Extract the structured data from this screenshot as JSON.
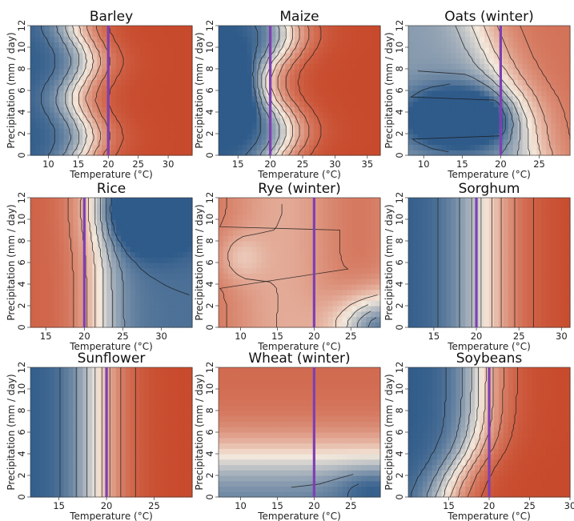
{
  "figure": {
    "colors": {
      "low": "#2f5b8a",
      "mid": "#f4e9dc",
      "high": "#c84a2c",
      "threshold_line": "#7e3fb3",
      "contour": "#1a1a1a"
    }
  },
  "chart_data": [
    {
      "type": "heatmap",
      "title": "Barley",
      "xlabel": "Temperature (°C)",
      "ylabel": "Precipitation (mm / day)",
      "xlim": [
        7,
        34
      ],
      "ylim": [
        0,
        12
      ],
      "xticks": [
        10,
        15,
        20,
        25,
        30
      ],
      "yticks": [
        0,
        2,
        4,
        6,
        8,
        10,
        12
      ],
      "reference_line_x": 20,
      "center_temperature": 15.5,
      "low_value_region": "cool temperatures, all precipitation",
      "high_value_region": "warm temperatures above 20 °C"
    },
    {
      "type": "heatmap",
      "title": "Maize",
      "xlabel": "Temperature (°C)",
      "ylabel": "Precipitation (mm / day)",
      "xlim": [
        12,
        37
      ],
      "ylim": [
        0,
        12
      ],
      "xticks": [
        15,
        20,
        25,
        30,
        35
      ],
      "yticks": [
        0,
        2,
        4,
        6,
        8,
        10,
        12
      ],
      "reference_line_x": 20,
      "center_temperature": 21,
      "low_value_region": "cool and wet (≈14–18 °C, 4–10 mm/day)",
      "high_value_region": "warm temperatures above 25 °C"
    },
    {
      "type": "heatmap",
      "title": "Oats (winter)",
      "xlabel": "Temperature (°C)",
      "ylabel": "Precipitation (mm / day)",
      "xlim": [
        8,
        29
      ],
      "ylim": [
        0,
        12
      ],
      "xticks": [
        10,
        15,
        20,
        25
      ],
      "yticks": [
        0,
        2,
        4,
        6,
        8,
        10,
        12
      ],
      "reference_line_x": 20,
      "center_temperature": 19,
      "low_value_region": "moderate precipitation (2–6 mm/day), 10–22 °C",
      "high_value_region": "warm and wet corner"
    },
    {
      "type": "heatmap",
      "title": "Rice",
      "xlabel": "Temperature (°C)",
      "ylabel": "Precipitation (mm / day)",
      "xlim": [
        13,
        34
      ],
      "ylim": [
        0,
        12
      ],
      "xticks": [
        15,
        20,
        25,
        30
      ],
      "yticks": [
        0,
        2,
        4,
        6,
        8,
        10,
        12
      ],
      "reference_line_x": 20,
      "center_temperature": 22,
      "low_value_region": "warm and wet (≈25–30 °C, 8–12 mm/day)",
      "high_value_region": "cool temperatures below 18 °C"
    },
    {
      "type": "heatmap",
      "title": "Rye (winter)",
      "xlabel": "Temperature (°C)",
      "ylabel": "Precipitation (mm / day)",
      "xlim": [
        7,
        29
      ],
      "ylim": [
        0,
        12
      ],
      "xticks": [
        10,
        15,
        20,
        25
      ],
      "yticks": [
        0,
        2,
        4,
        6,
        8,
        10,
        12
      ],
      "reference_line_x": 20,
      "center_temperature": 18,
      "low_value_region": "warm and dry (>22 °C, 0–2 mm/day)",
      "high_value_region": "most of the range"
    },
    {
      "type": "heatmap",
      "title": "Sorghum",
      "xlabel": "Temperature (°C)",
      "ylabel": "Precipitation (mm / day)",
      "xlim": [
        12,
        31
      ],
      "ylim": [
        0,
        12
      ],
      "xticks": [
        15,
        20,
        25,
        30
      ],
      "yticks": [
        0,
        2,
        4,
        6,
        8,
        10,
        12
      ],
      "reference_line_x": 20,
      "center_temperature": 21,
      "low_value_region": "cool temperatures below 18 °C",
      "high_value_region": "warm temperatures above 24 °C"
    },
    {
      "type": "heatmap",
      "title": "Sunflower",
      "xlabel": "Temperature (°C)",
      "ylabel": "Precipitation (mm / day)",
      "xlim": [
        12,
        29
      ],
      "ylim": [
        0,
        12
      ],
      "xticks": [
        15,
        20,
        25
      ],
      "yticks": [
        0,
        2,
        4,
        6,
        8,
        10,
        12
      ],
      "reference_line_x": 20,
      "center_temperature": 19,
      "low_value_region": "cool temperatures below 17 °C",
      "high_value_region": "warm temperatures above 21 °C"
    },
    {
      "type": "heatmap",
      "title": "Wheat (winter)",
      "xlabel": "Temperature (°C)",
      "ylabel": "Precipitation (mm / day)",
      "xlim": [
        7,
        29
      ],
      "ylim": [
        0,
        12
      ],
      "xticks": [
        10,
        15,
        20,
        25
      ],
      "yticks": [
        0,
        2,
        4,
        6,
        8,
        10,
        12
      ],
      "reference_line_x": 20,
      "center_temperature": 18,
      "low_value_region": "dry conditions, especially warm and dry",
      "high_value_region": "wet conditions (>6 mm/day)"
    },
    {
      "type": "heatmap",
      "title": "Soybeans",
      "xlabel": "Temperature (°C)",
      "ylabel": "Precipitation (mm / day)",
      "xlim": [
        10,
        30
      ],
      "ylim": [
        0,
        12
      ],
      "xticks": [
        15,
        20,
        25,
        30
      ],
      "yticks": [
        0,
        2,
        4,
        6,
        8,
        10,
        12
      ],
      "reference_line_x": 20,
      "center_temperature": 17,
      "low_value_region": "cool temperatures, low to moderate precipitation",
      "high_value_region": "warm temperatures above 22 °C"
    }
  ]
}
